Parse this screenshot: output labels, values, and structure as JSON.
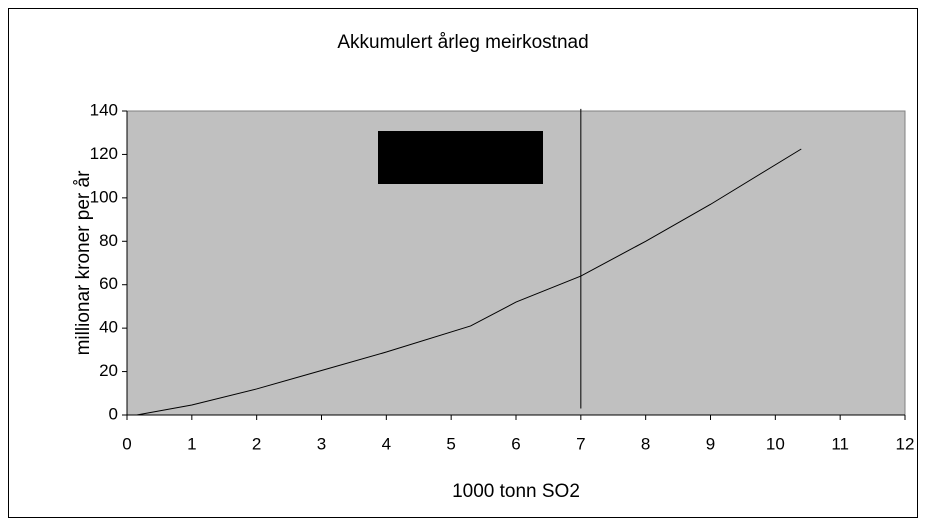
{
  "chart_data": {
    "type": "line",
    "title": "Akkumulert årleg meirkostnad",
    "x_label": "1000 tonn SO2",
    "y_label": "millionar kroner per år",
    "x": [
      0.15,
      1.0,
      2,
      3,
      4,
      5.3,
      6,
      7,
      8,
      9,
      10.4
    ],
    "values": [
      0,
      4.6,
      12,
      20.5,
      29,
      41,
      52,
      64,
      80,
      97,
      122.5
    ],
    "color": "#000000",
    "marker_line": {
      "x": 7,
      "y": [
        3,
        141
      ]
    },
    "xlim": [
      0,
      12
    ],
    "xticks": [
      0,
      1,
      2,
      3,
      4,
      5,
      6,
      7,
      8,
      9,
      10,
      11,
      12
    ],
    "ylim": [
      0,
      140
    ],
    "yticks": [
      0,
      20,
      40,
      60,
      80,
      100,
      120,
      140
    ],
    "plot_background": "#c0c0c0"
  }
}
